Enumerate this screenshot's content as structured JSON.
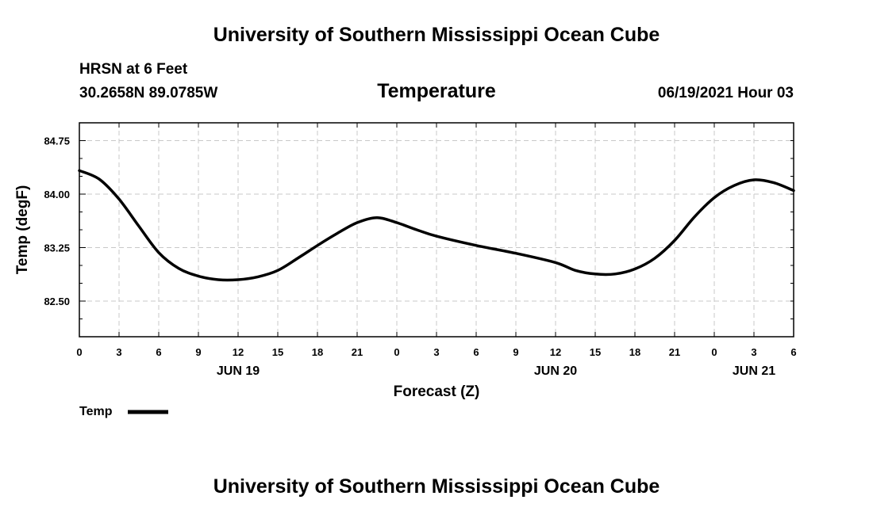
{
  "header": {
    "top_title": "University of Southern Mississippi Ocean Cube",
    "station": "HRSN at 6 Feet",
    "coords": "30.2658N  89.0785W",
    "variable": "Temperature",
    "datetime": "06/19/2021 Hour 03"
  },
  "footer": {
    "bottom_title": "University of Southern Mississippi Ocean Cube"
  },
  "legend": {
    "label": "Temp"
  },
  "colors": {
    "line": "#000000",
    "grid": "#c8c8c8"
  },
  "chart_data": {
    "type": "line",
    "title": "Temperature",
    "xlabel": "Forecast (Z)",
    "ylabel": "Temp (degF)",
    "xlim": [
      0,
      54
    ],
    "ylim": [
      82.0,
      85.0
    ],
    "yticks": [
      82.5,
      83.25,
      84.0,
      84.75
    ],
    "ytick_labels": [
      "82.50",
      "83.25",
      "84.00",
      "84.75"
    ],
    "x_tick_hours": [
      0,
      3,
      6,
      9,
      12,
      15,
      18,
      21,
      24,
      27,
      30,
      33,
      36,
      39,
      42,
      45,
      48,
      51,
      54
    ],
    "x_tick_labels": [
      "0",
      "3",
      "6",
      "9",
      "12",
      "15",
      "18",
      "21",
      "0",
      "3",
      "6",
      "9",
      "12",
      "15",
      "18",
      "21",
      "0",
      "3",
      "6"
    ],
    "date_labels": [
      {
        "hour": 12,
        "label": "JUN 19"
      },
      {
        "hour": 36,
        "label": "JUN 20"
      },
      {
        "hour": 51,
        "label": "JUN 21"
      }
    ],
    "series": [
      {
        "name": "Temp",
        "x": [
          0,
          1.5,
          3,
          4.5,
          6,
          7.5,
          9,
          10.5,
          12,
          13.5,
          15,
          16.5,
          18,
          19.5,
          21,
          22.5,
          24,
          25.5,
          27,
          30,
          33,
          36,
          37.5,
          39,
          40.5,
          42,
          43.5,
          45,
          46.5,
          48,
          49.5,
          51,
          52.5,
          54
        ],
        "y": [
          84.33,
          84.21,
          83.93,
          83.55,
          83.18,
          82.96,
          82.85,
          82.8,
          82.8,
          82.84,
          82.93,
          83.1,
          83.28,
          83.45,
          83.6,
          83.67,
          83.6,
          83.5,
          83.41,
          83.28,
          83.17,
          83.04,
          82.93,
          82.88,
          82.88,
          82.95,
          83.1,
          83.35,
          83.68,
          83.95,
          84.12,
          84.2,
          84.16,
          84.05
        ]
      }
    ]
  }
}
